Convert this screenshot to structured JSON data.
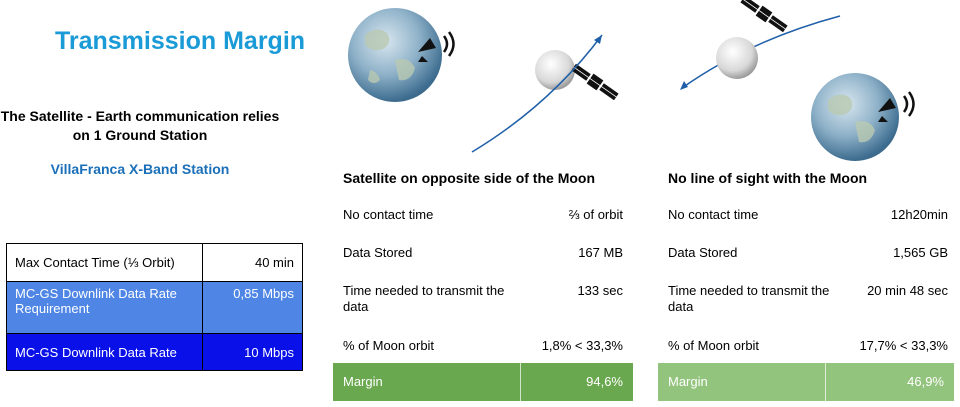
{
  "header": {
    "title": "Transmission Margin",
    "subtitle": "The Satellite - Earth communication relies on 1 Ground Station",
    "station": "VillaFranca X-Band Station"
  },
  "summary": {
    "rows": [
      {
        "label": "Max Contact Time (⅓ Orbit)",
        "value": "40 min"
      },
      {
        "label": "MC-GS Downlink Data Rate Requirement",
        "value": "0,85 Mbps"
      },
      {
        "label": "MC-GS Downlink Data Rate",
        "value": "10 Mbps"
      }
    ]
  },
  "scenarios": [
    {
      "heading": "Satellite on opposite side of the Moon",
      "rows": [
        {
          "label": "No contact time",
          "value": "⅔ of orbit"
        },
        {
          "label": "Data Stored",
          "value": "167 MB"
        },
        {
          "label": "Time needed to transmit the data",
          "value": "133 sec"
        },
        {
          "label": "% of Moon orbit",
          "value": "1,8% < 33,3%"
        }
      ],
      "margin": {
        "label": "Margin",
        "value": "94,6%"
      }
    },
    {
      "heading": "No line of sight with the Moon",
      "rows": [
        {
          "label": "No contact time",
          "value": "12h20min"
        },
        {
          "label": "Data Stored",
          "value": "1,565 GB"
        },
        {
          "label": "Time needed to transmit the data",
          "value": "20 min 48 sec"
        },
        {
          "label": "% of Moon orbit",
          "value": "17,7% < 33,3%"
        }
      ],
      "margin": {
        "label": "Margin",
        "value": "46,9%"
      }
    }
  ],
  "colors": {
    "title": "#1a9ad6",
    "station": "#1a6fb8",
    "summary_row_2": "#4f86e6",
    "summary_row_3": "#0a10e8",
    "margin_1": "#6aa84f",
    "margin_2": "#93c47d",
    "orbit_arrow": "#1f5fa8"
  },
  "icons": [
    "earth-icon",
    "moon-icon",
    "satellite-icon",
    "ground-station-antenna-icon",
    "orbit-arrow-icon"
  ]
}
